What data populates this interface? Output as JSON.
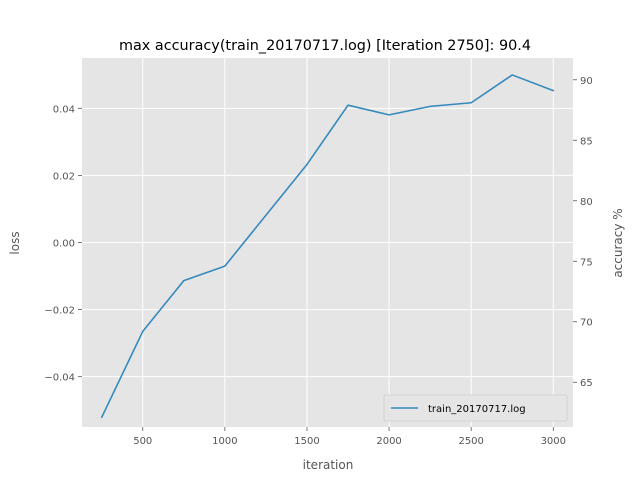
{
  "chart_data": {
    "type": "line",
    "title": "max accuracy(train_20170717.log) [Iteration 2750]: 90.4",
    "xlabel": "iteration",
    "ylabel_left": "loss",
    "ylabel_right": "accuracy %",
    "xlim": [
      130,
      3120
    ],
    "ylim_left": [
      -0.055,
      0.055
    ],
    "ylim_right": [
      61.3,
      91.8
    ],
    "x_ticks": [
      500,
      1000,
      1500,
      2000,
      2500,
      3000
    ],
    "x_tick_labels": [
      "500",
      "1000",
      "1500",
      "2000",
      "2500",
      "3000"
    ],
    "y_left_ticks": [
      -0.04,
      -0.02,
      0.0,
      0.02,
      0.04
    ],
    "y_left_tick_labels": [
      "−0.04",
      "−0.02",
      "0.00",
      "0.02",
      "0.04"
    ],
    "y_right_ticks": [
      65,
      70,
      75,
      80,
      85,
      90
    ],
    "y_right_tick_labels": [
      "65",
      "70",
      "75",
      "80",
      "85",
      "90"
    ],
    "grid": true,
    "legend_location": "lower-right",
    "series": [
      {
        "name": "train_20170717.log",
        "axis": "right",
        "color": "#348abd",
        "x": [
          250,
          500,
          750,
          1000,
          1500,
          1750,
          2000,
          2250,
          2500,
          2750,
          3000
        ],
        "y": [
          62.1,
          69.2,
          73.4,
          74.6,
          83.0,
          87.9,
          87.1,
          87.8,
          88.1,
          90.4,
          89.1
        ]
      }
    ]
  }
}
